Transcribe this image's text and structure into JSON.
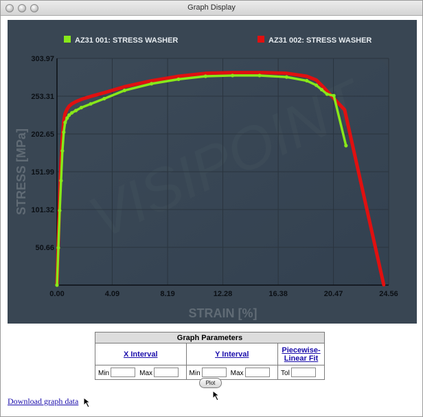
{
  "window": {
    "title": "Graph Display"
  },
  "chart_data": {
    "type": "line",
    "xlabel": "STRAIN [%]",
    "ylabel": "STRESS [MPa]",
    "xlim": [
      0,
      24.56
    ],
    "ylim": [
      0,
      303.97
    ],
    "xticks": [
      "0.00",
      "4.09",
      "8.19",
      "12.28",
      "16.38",
      "20.47",
      "24.56"
    ],
    "yticks": [
      "50.66",
      "101.32",
      "151.99",
      "202.65",
      "253.31",
      "303.97"
    ],
    "legend_position": "top",
    "grid": true,
    "series": [
      {
        "name": "AZ31 001: STRESS WASHER",
        "color": "#88e81a",
        "x": [
          0,
          0.1,
          0.2,
          0.3,
          0.4,
          0.5,
          0.6,
          0.75,
          0.9,
          1.1,
          1.4,
          1.8,
          2.5,
          3.5,
          5,
          7,
          9,
          11,
          13,
          15,
          17,
          18.5,
          19.2,
          19.6,
          20.0,
          20.5,
          21.4
        ],
        "y": [
          0,
          50,
          100,
          140,
          180,
          205,
          218,
          224,
          228,
          231,
          234,
          238,
          243,
          250,
          261,
          270,
          276,
          280,
          281,
          281,
          279,
          274,
          268,
          262,
          256,
          254,
          187
        ]
      },
      {
        "name": "AZ31 002: STRESS WASHER",
        "color": "#e01010",
        "x": [
          0,
          0.1,
          0.2,
          0.3,
          0.4,
          0.5,
          0.6,
          0.75,
          0.9,
          1.1,
          1.4,
          1.8,
          2.5,
          3.5,
          5,
          7,
          9,
          11,
          13,
          15,
          17,
          18.5,
          19.2,
          19.7,
          20.2,
          21.3,
          24.2
        ],
        "y": [
          0,
          60,
          120,
          165,
          200,
          220,
          230,
          236,
          240,
          243,
          246,
          249,
          253,
          258,
          266,
          274,
          280,
          284,
          285,
          285,
          284,
          280,
          275,
          266,
          256,
          235,
          0
        ]
      }
    ]
  },
  "params": {
    "title": "Graph Parameters",
    "x_interval": "X Interval",
    "y_interval": "Y Interval",
    "piecewise": "Piecewise-Linear Fit",
    "min_label": "Min",
    "max_label": "Max",
    "tol_label": "Tol",
    "x_min": "",
    "x_max": "",
    "y_min": "",
    "y_max": "",
    "tol": ""
  },
  "plot_button": "Plot",
  "download_link": "Download graph data"
}
